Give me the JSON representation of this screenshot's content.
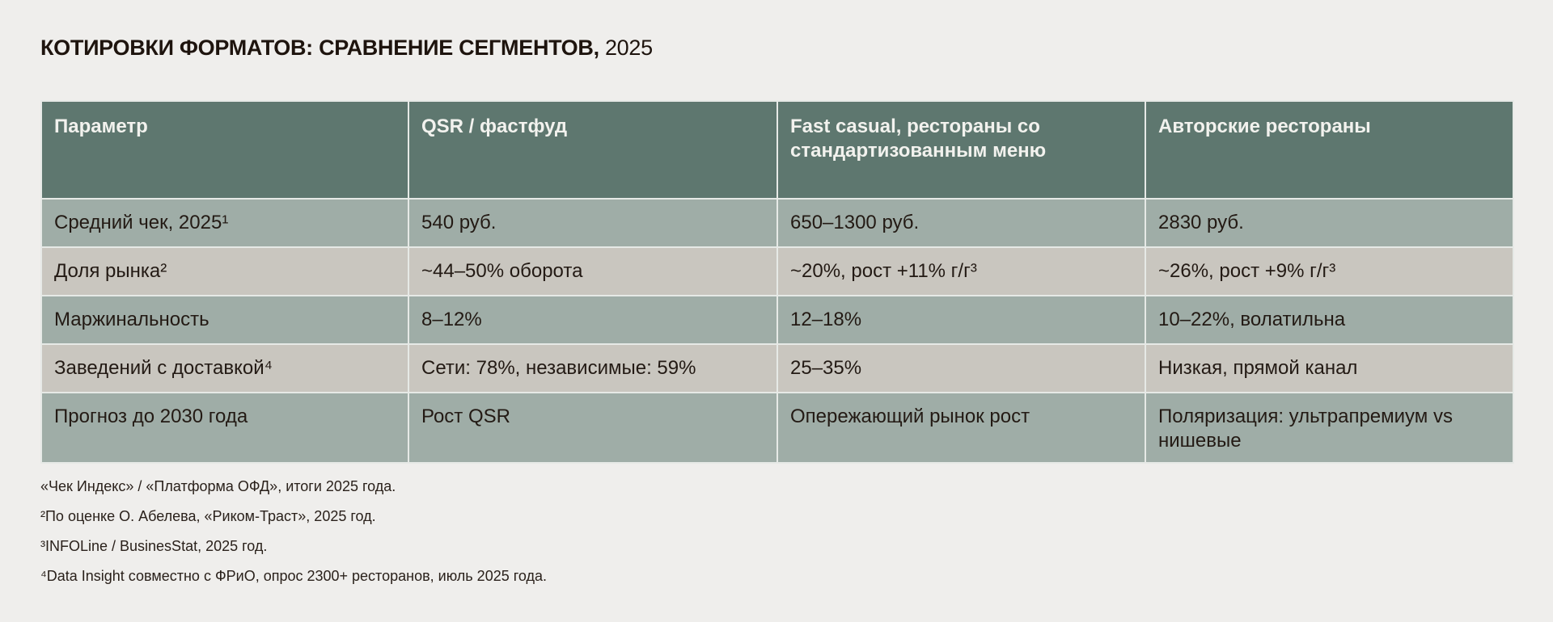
{
  "title": {
    "main": "КОТИРОВКИ ФОРМАТОВ: СРАВНЕНИЕ СЕГМЕНТОВ,",
    "year": "2025"
  },
  "colors": {
    "header_bg": "#5e776f",
    "row_odd_bg": "#9fada7",
    "row_even_bg": "#c9c6bf",
    "page_bg": "#efeeec"
  },
  "table": {
    "headers": [
      "Параметр",
      "QSR / фастфуд",
      "Fast casual, рестораны со стандартизованным меню",
      "Авторские рестораны"
    ],
    "rows": [
      [
        "Средний чек, 2025¹",
        "540 руб.",
        "650–1300 руб.",
        "2830 руб."
      ],
      [
        "Доля рынка²",
        "~44–50% оборота",
        "~20%, рост +11% г/г³",
        "~26%, рост +9% г/г³"
      ],
      [
        "Маржинальность",
        "8–12%",
        "12–18%",
        "10–22%, волатильна"
      ],
      [
        "Заведений с доставкой⁴",
        "Сети: 78%, независимые: 59%",
        "25–35%",
        "Низкая, прямой канал"
      ],
      [
        "Прогноз до 2030 года",
        "Рост QSR",
        "Опережающий рынок рост",
        "Поляризация: ультрапремиум vs нишевые"
      ]
    ]
  },
  "footnotes": [
    "«Чек Индекс» / «Платформа ОФД», итоги 2025 года.",
    "²По оценке О. Абелева, «Риком-Траст», 2025 год.",
    "³INFOLine / BusinesStat, 2025 год.",
    "⁴Data Insight совместно с ФРиО, опрос 2300+ ресторанов, июль 2025 года."
  ]
}
